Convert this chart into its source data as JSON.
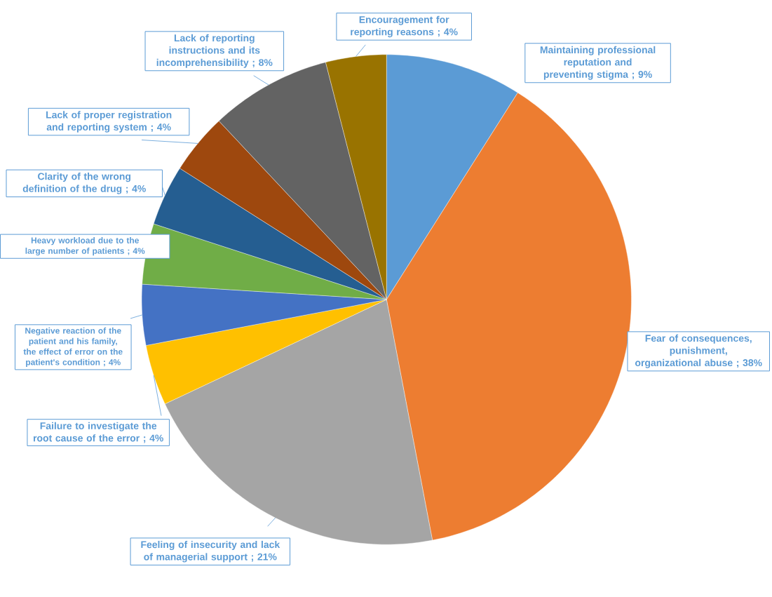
{
  "chart_data": {
    "type": "pie",
    "categories": [
      "Maintaining professional reputation and preventing stigma",
      "Fear of consequences, punishment, organizational abuse",
      "Feeling of insecurity and lack of managerial support",
      "Failure to investigate the root cause of the error",
      "Negative reaction of the patient and his family, the effect of error on the patient's condition",
      "Heavy workload due to the large number of patients",
      "Clarity of the wrong definition of the drug",
      "Lack of proper registration and reporting system",
      "Lack of reporting instructions and its incomprehensibility",
      "Encouragement for reporting reasons"
    ],
    "values": [
      9,
      38,
      21,
      4,
      4,
      4,
      4,
      4,
      8,
      4
    ],
    "value_labels": [
      "; 9%",
      "; 38%",
      "; 21%",
      "; 4%",
      "; 4%",
      "; 4%",
      "; 4%",
      "; 4%",
      "; 8%",
      "; 4%"
    ],
    "colors": [
      "#5b9bd5",
      "#ed7d31",
      "#a5a5a5",
      "#ffc000",
      "#4472c4",
      "#70ad47",
      "#255e91",
      "#9e480e",
      "#636363",
      "#997300"
    ]
  }
}
